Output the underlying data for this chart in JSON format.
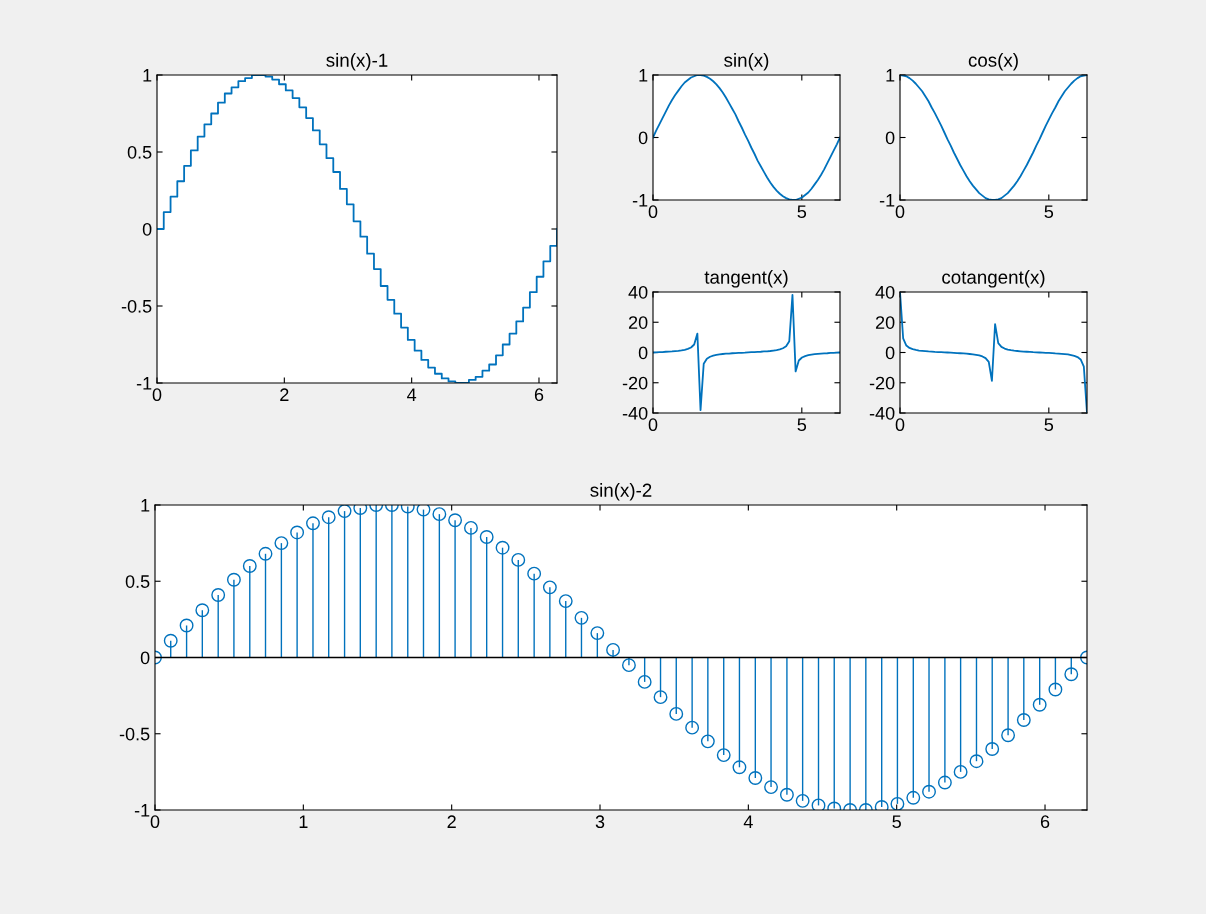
{
  "chart_data": [
    {
      "type": "step",
      "title": "sin(x)-1",
      "color": "#0072bd",
      "x": [
        0,
        0.106,
        0.213,
        0.319,
        0.426,
        0.532,
        0.639,
        0.745,
        0.852,
        0.958,
        1.065,
        1.171,
        1.278,
        1.384,
        1.491,
        1.597,
        1.704,
        1.81,
        1.917,
        2.023,
        2.13,
        2.236,
        2.343,
        2.449,
        2.556,
        2.662,
        2.769,
        2.875,
        2.982,
        3.088,
        3.195,
        3.301,
        3.408,
        3.514,
        3.621,
        3.727,
        3.834,
        3.94,
        4.047,
        4.153,
        4.26,
        4.366,
        4.473,
        4.579,
        4.686,
        4.792,
        4.899,
        5.005,
        5.112,
        5.218,
        5.325,
        5.431,
        5.538,
        5.644,
        5.751,
        5.857,
        5.964,
        6.07,
        6.177,
        6.283
      ],
      "values": [
        0,
        0.11,
        0.21,
        0.31,
        0.41,
        0.51,
        0.6,
        0.68,
        0.75,
        0.82,
        0.88,
        0.92,
        0.96,
        0.98,
        1,
        1,
        0.99,
        0.97,
        0.94,
        0.9,
        0.85,
        0.79,
        0.72,
        0.64,
        0.55,
        0.46,
        0.37,
        0.26,
        0.16,
        0.05,
        -0.05,
        -0.16,
        -0.26,
        -0.37,
        -0.46,
        -0.55,
        -0.64,
        -0.72,
        -0.79,
        -0.85,
        -0.9,
        -0.94,
        -0.97,
        -0.99,
        -1,
        -1,
        -0.98,
        -0.96,
        -0.92,
        -0.88,
        -0.82,
        -0.75,
        -0.68,
        -0.6,
        -0.51,
        -0.41,
        -0.31,
        -0.21,
        -0.11,
        0
      ],
      "xlim": [
        0,
        6.283
      ],
      "xticks": [
        0,
        2,
        4,
        6
      ],
      "ylim": [
        -1,
        1
      ],
      "yticks": [
        -1,
        -0.5,
        0,
        0.5,
        1
      ]
    },
    {
      "type": "line",
      "title": "sin(x)",
      "color": "#0072bd",
      "x": [
        0,
        0.106,
        0.213,
        0.319,
        0.426,
        0.532,
        0.639,
        0.745,
        0.852,
        0.958,
        1.065,
        1.171,
        1.278,
        1.384,
        1.491,
        1.597,
        1.704,
        1.81,
        1.917,
        2.023,
        2.13,
        2.236,
        2.343,
        2.449,
        2.556,
        2.662,
        2.769,
        2.875,
        2.982,
        3.088,
        3.195,
        3.301,
        3.408,
        3.514,
        3.621,
        3.727,
        3.834,
        3.94,
        4.047,
        4.153,
        4.26,
        4.366,
        4.473,
        4.579,
        4.686,
        4.792,
        4.899,
        5.005,
        5.112,
        5.218,
        5.325,
        5.431,
        5.538,
        5.644,
        5.751,
        5.857,
        5.964,
        6.07,
        6.177,
        6.283
      ],
      "values": [
        0,
        0.11,
        0.21,
        0.31,
        0.41,
        0.51,
        0.6,
        0.68,
        0.75,
        0.82,
        0.88,
        0.92,
        0.96,
        0.98,
        1,
        1,
        0.99,
        0.97,
        0.94,
        0.9,
        0.85,
        0.79,
        0.72,
        0.64,
        0.55,
        0.46,
        0.37,
        0.26,
        0.16,
        0.05,
        -0.05,
        -0.16,
        -0.26,
        -0.37,
        -0.46,
        -0.55,
        -0.64,
        -0.72,
        -0.79,
        -0.85,
        -0.9,
        -0.94,
        -0.97,
        -0.99,
        -1,
        -1,
        -0.98,
        -0.96,
        -0.92,
        -0.88,
        -0.82,
        -0.75,
        -0.68,
        -0.6,
        -0.51,
        -0.41,
        -0.31,
        -0.21,
        -0.11,
        0
      ],
      "xlim": [
        0,
        6.283
      ],
      "xticks": [
        0,
        5
      ],
      "ylim": [
        -1,
        1
      ],
      "yticks": [
        -1,
        0,
        1
      ]
    },
    {
      "type": "line",
      "title": "cos(x)",
      "color": "#0072bd",
      "x": [
        0,
        0.106,
        0.213,
        0.319,
        0.426,
        0.532,
        0.639,
        0.745,
        0.852,
        0.958,
        1.065,
        1.171,
        1.278,
        1.384,
        1.491,
        1.597,
        1.704,
        1.81,
        1.917,
        2.023,
        2.13,
        2.236,
        2.343,
        2.449,
        2.556,
        2.662,
        2.769,
        2.875,
        2.982,
        3.088,
        3.195,
        3.301,
        3.408,
        3.514,
        3.621,
        3.727,
        3.834,
        3.94,
        4.047,
        4.153,
        4.26,
        4.366,
        4.473,
        4.579,
        4.686,
        4.792,
        4.899,
        5.005,
        5.112,
        5.218,
        5.325,
        5.431,
        5.538,
        5.644,
        5.751,
        5.857,
        5.964,
        6.07,
        6.177,
        6.283
      ],
      "values": [
        1,
        0.99,
        0.98,
        0.95,
        0.91,
        0.86,
        0.8,
        0.74,
        0.66,
        0.58,
        0.48,
        0.39,
        0.29,
        0.19,
        0.08,
        -0.03,
        -0.13,
        -0.24,
        -0.34,
        -0.44,
        -0.53,
        -0.62,
        -0.7,
        -0.77,
        -0.83,
        -0.89,
        -0.93,
        -0.97,
        -0.99,
        -1,
        -1,
        -0.99,
        -0.97,
        -0.93,
        -0.89,
        -0.83,
        -0.77,
        -0.7,
        -0.62,
        -0.53,
        -0.44,
        -0.34,
        -0.24,
        -0.13,
        -0.03,
        0.08,
        0.19,
        0.29,
        0.39,
        0.48,
        0.58,
        0.66,
        0.74,
        0.8,
        0.86,
        0.91,
        0.95,
        0.98,
        0.99,
        1
      ],
      "xlim": [
        0,
        6.283
      ],
      "xticks": [
        0,
        5
      ],
      "ylim": [
        -1,
        1
      ],
      "yticks": [
        -1,
        0,
        1
      ]
    },
    {
      "type": "line",
      "title": "tangent(x)",
      "color": "#0072bd",
      "x": [
        0,
        0.106,
        0.213,
        0.319,
        0.426,
        0.532,
        0.639,
        0.745,
        0.852,
        0.958,
        1.065,
        1.171,
        1.278,
        1.384,
        1.491,
        1.597,
        1.704,
        1.81,
        1.917,
        2.023,
        2.13,
        2.236,
        2.343,
        2.449,
        2.556,
        2.662,
        2.769,
        2.875,
        2.982,
        3.088,
        3.195,
        3.301,
        3.408,
        3.514,
        3.621,
        3.727,
        3.834,
        3.94,
        4.047,
        4.153,
        4.26,
        4.366,
        4.473,
        4.579,
        4.686,
        4.792,
        4.899,
        5.005,
        5.112,
        5.218,
        5.325,
        5.431,
        5.538,
        5.644,
        5.751,
        5.857,
        5.964,
        6.07,
        6.177,
        6.283
      ],
      "values": [
        0,
        0.1,
        0.2,
        0.3,
        0.5,
        0.6,
        0.7,
        0.9,
        1.1,
        1.4,
        1.8,
        2.4,
        3.3,
        5.3,
        12.5,
        -38.1,
        -7.5,
        -4.1,
        -2.8,
        -2.1,
        -1.6,
        -1.3,
        -1,
        -0.8,
        -0.7,
        -0.5,
        -0.4,
        -0.3,
        -0.2,
        -0.1,
        0.1,
        0.2,
        0.3,
        0.4,
        0.5,
        0.7,
        0.8,
        1,
        1.3,
        1.6,
        2.1,
        2.8,
        4.1,
        7.5,
        38.1,
        -12.5,
        -5.3,
        -3.3,
        -2.4,
        -1.8,
        -1.4,
        -1.1,
        -0.9,
        -0.7,
        -0.6,
        -0.5,
        -0.3,
        -0.2,
        -0.1,
        0
      ],
      "xlim": [
        0,
        6.283
      ],
      "xticks": [
        0,
        5
      ],
      "ylim": [
        -40,
        40
      ],
      "yticks": [
        -40,
        -20,
        0,
        20,
        40
      ]
    },
    {
      "type": "line",
      "title": "cotangent(x)",
      "color": "#0072bd",
      "x": [
        0,
        0.106,
        0.213,
        0.319,
        0.426,
        0.532,
        0.639,
        0.745,
        0.852,
        0.958,
        1.065,
        1.171,
        1.278,
        1.384,
        1.491,
        1.597,
        1.704,
        1.81,
        1.917,
        2.023,
        2.13,
        2.236,
        2.343,
        2.449,
        2.556,
        2.662,
        2.769,
        2.875,
        2.982,
        3.088,
        3.195,
        3.301,
        3.408,
        3.514,
        3.621,
        3.727,
        3.834,
        3.94,
        4.047,
        4.153,
        4.26,
        4.366,
        4.473,
        4.579,
        4.686,
        4.792,
        4.899,
        5.005,
        5.112,
        5.218,
        5.325,
        5.431,
        5.538,
        5.644,
        5.751,
        5.857,
        5.964,
        6.07,
        6.177,
        6.283
      ],
      "values": [
        40,
        9.4,
        4.6,
        3,
        2.2,
        1.7,
        1.3,
        1.1,
        0.9,
        0.7,
        0.6,
        0.4,
        0.3,
        0.2,
        0.1,
        0,
        -0.1,
        -0.2,
        -0.4,
        -0.5,
        -0.6,
        -0.8,
        -1,
        -1.2,
        -1.5,
        -1.9,
        -2.6,
        -3.7,
        -6.2,
        -18.8,
        18.8,
        6.2,
        3.7,
        2.6,
        1.9,
        1.5,
        1.2,
        1,
        0.8,
        0.6,
        0.5,
        0.4,
        0.2,
        0.1,
        0,
        -0.1,
        -0.2,
        -0.3,
        -0.4,
        -0.6,
        -0.7,
        -0.9,
        -1.1,
        -1.3,
        -1.7,
        -2.2,
        -3,
        -4.6,
        -9.4,
        -40
      ],
      "xlim": [
        0,
        6.283
      ],
      "xticks": [
        0,
        5
      ],
      "ylim": [
        -40,
        40
      ],
      "yticks": [
        -40,
        -20,
        0,
        20,
        40
      ]
    },
    {
      "type": "lollipop",
      "title": "sin(x)-2",
      "color": "#0072bd",
      "marker": "circle",
      "x": [
        0,
        0.106,
        0.213,
        0.319,
        0.426,
        0.532,
        0.639,
        0.745,
        0.852,
        0.958,
        1.065,
        1.171,
        1.278,
        1.384,
        1.491,
        1.597,
        1.704,
        1.81,
        1.917,
        2.023,
        2.13,
        2.236,
        2.343,
        2.449,
        2.556,
        2.662,
        2.769,
        2.875,
        2.982,
        3.088,
        3.195,
        3.301,
        3.408,
        3.514,
        3.621,
        3.727,
        3.834,
        3.94,
        4.047,
        4.153,
        4.26,
        4.366,
        4.473,
        4.579,
        4.686,
        4.792,
        4.899,
        5.005,
        5.112,
        5.218,
        5.325,
        5.431,
        5.538,
        5.644,
        5.751,
        5.857,
        5.964,
        6.07,
        6.177,
        6.283
      ],
      "values": [
        0,
        0.11,
        0.21,
        0.31,
        0.41,
        0.51,
        0.6,
        0.68,
        0.75,
        0.82,
        0.88,
        0.92,
        0.96,
        0.98,
        1,
        1,
        0.99,
        0.97,
        0.94,
        0.9,
        0.85,
        0.79,
        0.72,
        0.64,
        0.55,
        0.46,
        0.37,
        0.26,
        0.16,
        0.05,
        -0.05,
        -0.16,
        -0.26,
        -0.37,
        -0.46,
        -0.55,
        -0.64,
        -0.72,
        -0.79,
        -0.85,
        -0.9,
        -0.94,
        -0.97,
        -0.99,
        -1,
        -1,
        -0.98,
        -0.96,
        -0.92,
        -0.88,
        -0.82,
        -0.75,
        -0.68,
        -0.6,
        -0.51,
        -0.41,
        -0.31,
        -0.21,
        -0.11,
        0
      ],
      "xlim": [
        0,
        6.283
      ],
      "xticks": [
        0,
        1,
        2,
        3,
        4,
        5,
        6
      ],
      "ylim": [
        -1,
        1
      ],
      "yticks": [
        -1,
        -0.5,
        0,
        0.5,
        1
      ]
    }
  ]
}
